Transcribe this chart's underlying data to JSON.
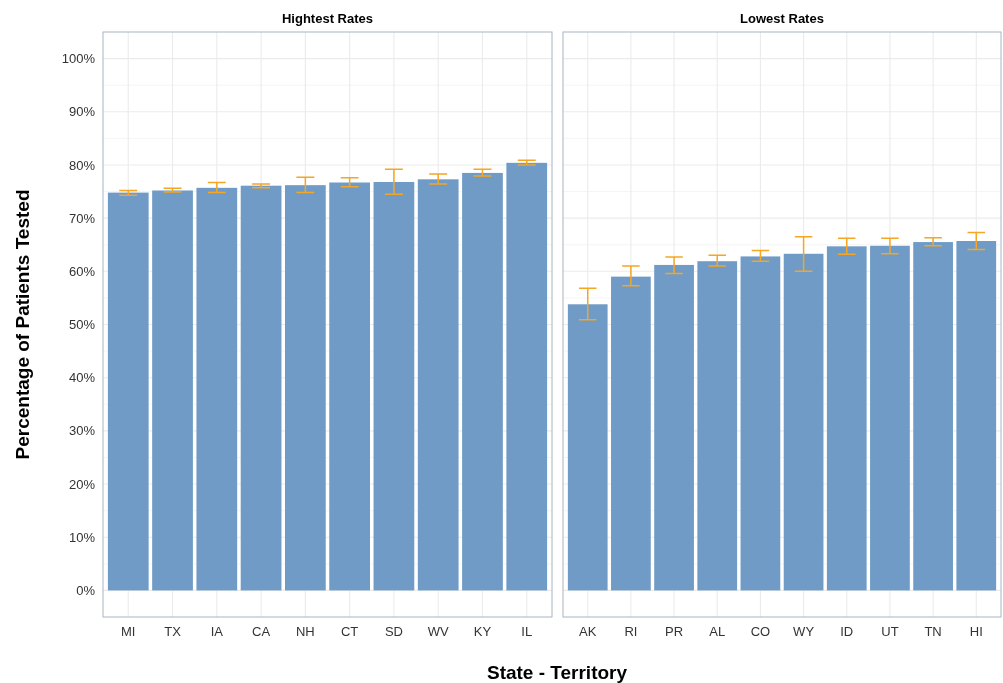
{
  "chart_data": [
    {
      "type": "bar",
      "title": "Hightest Rates",
      "xlabel": "State - Territory",
      "ylabel": "Percentage of Patients Tested",
      "categories": [
        "MI",
        "TX",
        "IA",
        "CA",
        "NH",
        "CT",
        "SD",
        "WV",
        "KY",
        "IL"
      ],
      "values": [
        74.8,
        75.2,
        75.7,
        76.1,
        76.2,
        76.7,
        76.8,
        77.3,
        78.5,
        80.4
      ],
      "errors": [
        [
          74.3,
          75.2
        ],
        [
          74.9,
          75.6
        ],
        [
          74.8,
          76.7
        ],
        [
          75.7,
          76.4
        ],
        [
          74.8,
          77.7
        ],
        [
          75.9,
          77.6
        ],
        [
          74.5,
          79.2
        ],
        [
          76.4,
          78.3
        ],
        [
          77.9,
          79.2
        ],
        [
          80.0,
          80.9
        ]
      ],
      "color": "#6f9bc6",
      "ylim": [
        -5,
        105
      ],
      "yticks": [
        {
          "value": 0,
          "label": "0%"
        },
        {
          "value": 10,
          "label": "10%"
        },
        {
          "value": 20,
          "label": "20%"
        },
        {
          "value": 30,
          "label": "30%"
        },
        {
          "value": 40,
          "label": "40%"
        },
        {
          "value": 50,
          "label": "50%"
        },
        {
          "value": 60,
          "label": "60%"
        },
        {
          "value": 70,
          "label": "70%"
        },
        {
          "value": 80,
          "label": "80%"
        },
        {
          "value": 90,
          "label": "90%"
        },
        {
          "value": 100,
          "label": "100%"
        }
      ],
      "grid": true
    },
    {
      "type": "bar",
      "title": "Lowest Rates",
      "categories": [
        "AK",
        "RI",
        "PR",
        "AL",
        "CO",
        "WY",
        "ID",
        "UT",
        "TN",
        "HI"
      ],
      "values": [
        53.8,
        59.0,
        61.2,
        61.9,
        62.8,
        63.3,
        64.7,
        64.8,
        65.5,
        65.7
      ],
      "errors": [
        [
          50.9,
          56.8
        ],
        [
          57.3,
          61.0
        ],
        [
          59.6,
          62.7
        ],
        [
          61.0,
          63.0
        ],
        [
          61.9,
          63.9
        ],
        [
          60.0,
          66.5
        ],
        [
          63.2,
          66.2
        ],
        [
          63.3,
          66.2
        ],
        [
          64.8,
          66.3
        ],
        [
          64.1,
          67.3
        ]
      ],
      "color": "#6f9bc6",
      "ylim": [
        -5,
        105
      ],
      "yticks": [
        {
          "value": 0,
          "label": null
        },
        {
          "value": 10,
          "label": null
        },
        {
          "value": 20,
          "label": null
        },
        {
          "value": 30,
          "label": null
        },
        {
          "value": 40,
          "label": null
        },
        {
          "value": 50,
          "label": null
        },
        {
          "value": 60,
          "label": null
        },
        {
          "value": 70,
          "label": null
        },
        {
          "value": 80,
          "label": null
        },
        {
          "value": 90,
          "label": null
        },
        {
          "value": 100,
          "label": null
        }
      ],
      "grid": true,
      "tick_labels": "x"
    }
  ]
}
